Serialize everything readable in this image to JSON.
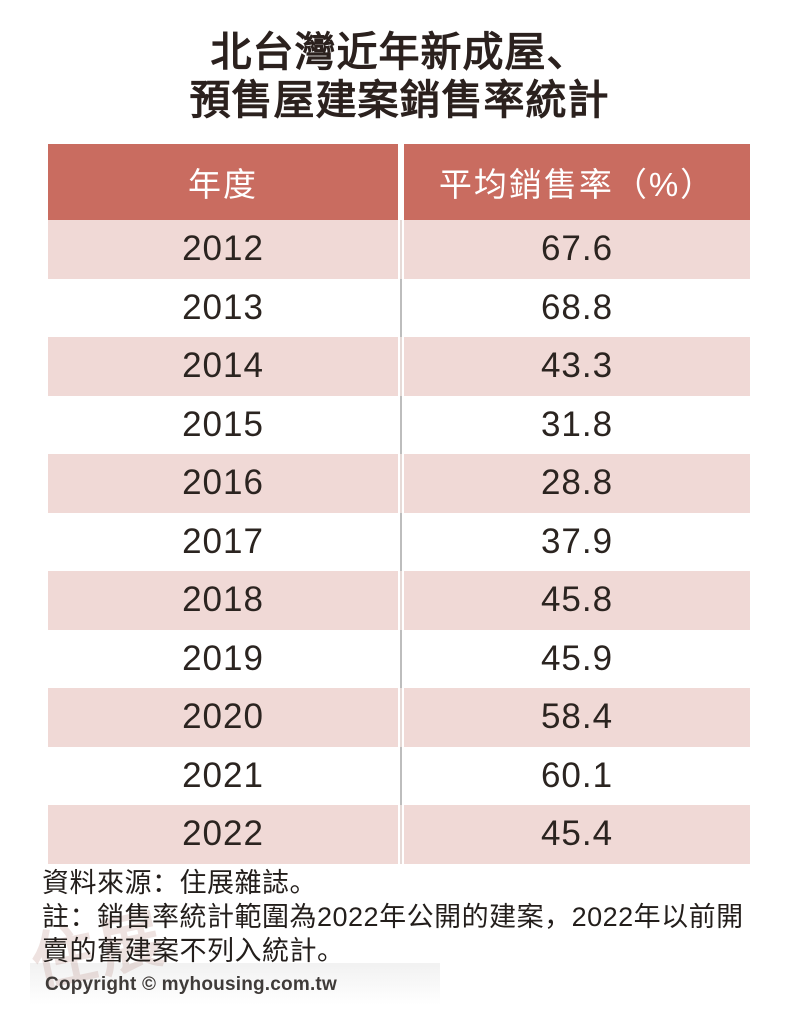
{
  "page": {
    "title_line1": "北台灣近年新成屋、",
    "title_line2": "預售屋建案銷售率統計"
  },
  "table": {
    "header_year": "年度",
    "header_rate": "平均銷售率（%）",
    "rows": [
      {
        "year": "2012",
        "rate": "67.6"
      },
      {
        "year": "2013",
        "rate": "68.8"
      },
      {
        "year": "2014",
        "rate": "43.3"
      },
      {
        "year": "2015",
        "rate": "31.8"
      },
      {
        "year": "2016",
        "rate": "28.8"
      },
      {
        "year": "2017",
        "rate": "37.9"
      },
      {
        "year": "2018",
        "rate": "45.8"
      },
      {
        "year": "2019",
        "rate": "45.9"
      },
      {
        "year": "2020",
        "rate": "58.4"
      },
      {
        "year": "2021",
        "rate": "60.1"
      },
      {
        "year": "2022",
        "rate": "45.4"
      }
    ]
  },
  "footer": {
    "source": "資料來源：住展雜誌。",
    "note": "註：銷售率統計範圍為2022年公開的建案，2022年以前開賣的舊建案不列入統計。",
    "copyright": "Copyright © myhousing.com.tw"
  },
  "watermark": "住展",
  "colors": {
    "header_bg": "#C96C60",
    "row_pink": "#F0D9D6",
    "row_white": "#FFFFFF",
    "text_dark": "#2B211E",
    "divider_gray": "#BDBDBD"
  },
  "chart_data": {
    "type": "table",
    "title": "北台灣近年新成屋、預售屋建案銷售率統計",
    "columns": [
      "年度",
      "平均銷售率（%）"
    ],
    "categories": [
      "2012",
      "2013",
      "2014",
      "2015",
      "2016",
      "2017",
      "2018",
      "2019",
      "2020",
      "2021",
      "2022"
    ],
    "values": [
      67.6,
      68.8,
      43.3,
      31.8,
      28.8,
      37.9,
      45.8,
      45.9,
      58.4,
      60.1,
      45.4
    ],
    "ylabel": "平均銷售率（%）",
    "xlabel": "年度",
    "source": "資料來源：住展雜誌。",
    "note": "註：銷售率統計範圍為2022年公開的建案，2022年以前開賣的舊建案不列入統計。",
    "copyright": "Copyright © myhousing.com.tw"
  }
}
